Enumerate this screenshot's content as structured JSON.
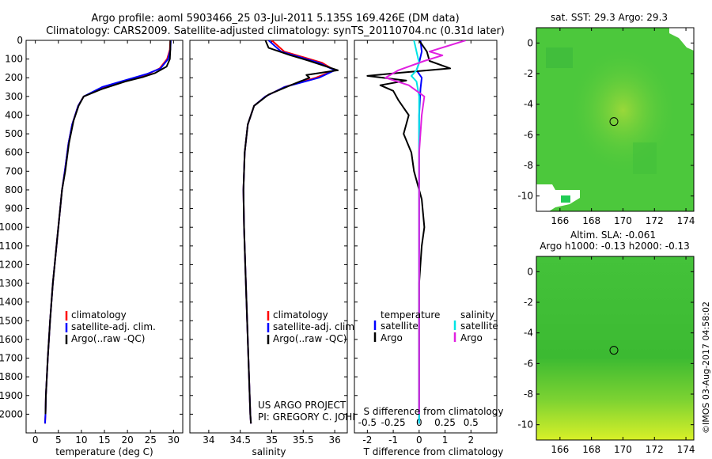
{
  "figure": {
    "title_line1": "Argo profile: aoml 5903466_25 03-Jul-2011 5.135S 169.426E (DM data)",
    "title_line2": "Climatology: CARS2009. Satellite-adjusted climatology: synTS_20110704.nc (0.31d later)",
    "credit_line1": "US ARGO PROJECT",
    "credit_line2": "PI: GREGORY C. JOHNSON",
    "side_stamp": "©IMOS 03-Aug-2017 04:58:02"
  },
  "colors": {
    "climatology": "#ff0000",
    "satellite": "#0000ff",
    "argo": "#000000",
    "salinity_satellite": "#00e5e5",
    "salinity_argo": "#e020e0",
    "map_green": "#3cc43c",
    "map_yellow": "#d8f028",
    "land": "#ffffff"
  },
  "legend": {
    "climatology": "climatology",
    "satellite_adj": "satellite-adj. clim.",
    "argo_raw": "Argo(..raw -QC)",
    "diff_temp_header": "temperature",
    "diff_sal_header": "salinity",
    "satellite": "satellite",
    "argo": "Argo"
  },
  "chart_data": [
    {
      "id": "temperature",
      "type": "line",
      "xlabel": "temperature (deg C)",
      "ylabel": "",
      "xlim": [
        -2,
        32
      ],
      "ylim": [
        2100,
        0
      ],
      "xticks": [
        0,
        5,
        10,
        15,
        20,
        25,
        30
      ],
      "xtick_labels": [
        "0",
        "5",
        "10",
        "15",
        "20",
        "25",
        "30"
      ],
      "yticks": [
        0,
        100,
        200,
        300,
        400,
        500,
        600,
        700,
        800,
        900,
        1000,
        1100,
        1200,
        1300,
        1400,
        1500,
        1600,
        1700,
        1800,
        1900,
        2000
      ],
      "ytick_labels": [
        "0",
        "100",
        "200",
        "300",
        "400",
        "500",
        "600",
        "700",
        "800",
        "900",
        "1000",
        "1100",
        "1200",
        "1300",
        "1400",
        "1500",
        "1600",
        "1700",
        "1800",
        "1900",
        "2000"
      ],
      "series": [
        {
          "name": "climatology",
          "color": "#ff0000",
          "x": [
            29.3,
            29.2,
            28.6,
            27.0,
            24.5,
            20.5,
            15.0,
            10.5,
            9.3,
            8.0,
            7.2,
            6.4,
            5.8,
            4.6,
            3.8,
            3.2,
            2.7,
            2.3,
            2.2,
            2.1
          ],
          "y": [
            0,
            50,
            100,
            150,
            180,
            210,
            250,
            300,
            350,
            450,
            550,
            700,
            800,
            1100,
            1300,
            1500,
            1700,
            1900,
            2000,
            2050
          ]
        },
        {
          "name": "satellite-adj. clim.",
          "color": "#0000ff",
          "x": [
            29.4,
            29.3,
            28.8,
            27.2,
            24.2,
            20.0,
            14.5,
            10.5,
            9.3,
            8.0,
            7.2,
            6.4,
            5.8,
            4.6,
            3.8,
            3.2,
            2.7,
            2.3,
            2.2,
            2.1
          ],
          "y": [
            0,
            50,
            100,
            150,
            180,
            210,
            250,
            300,
            350,
            450,
            550,
            700,
            800,
            1100,
            1300,
            1500,
            1700,
            1900,
            2000,
            2050
          ]
        },
        {
          "name": "Argo(..raw -QC)",
          "color": "#000000",
          "x": [
            29.3,
            29.3,
            29.2,
            28.5,
            26.0,
            23.5,
            19.5,
            14.5,
            10.5,
            9.4,
            8.3,
            7.3,
            6.5,
            5.8,
            4.6,
            3.8,
            3.2,
            2.7,
            2.3,
            2.2
          ],
          "y": [
            0,
            50,
            100,
            140,
            175,
            195,
            220,
            260,
            300,
            350,
            430,
            550,
            700,
            800,
            1100,
            1300,
            1500,
            1700,
            1900,
            2000
          ]
        }
      ]
    },
    {
      "id": "salinity",
      "type": "line",
      "xlabel": "salinity",
      "xlim": [
        33.7,
        36.2
      ],
      "ylim": [
        2100,
        0
      ],
      "xticks": [
        34,
        34.5,
        35,
        35.5,
        36
      ],
      "xtick_labels": [
        "34",
        "34.5",
        "35",
        "35.5",
        "36"
      ],
      "series": [
        {
          "name": "climatology",
          "color": "#ff0000",
          "x": [
            35.0,
            35.2,
            35.8,
            36.0,
            35.7,
            35.2,
            34.9,
            34.72,
            34.62,
            34.57,
            34.55,
            34.56,
            34.58,
            34.61,
            34.64,
            34.66,
            34.67
          ],
          "y": [
            0,
            60,
            120,
            160,
            200,
            250,
            300,
            350,
            450,
            600,
            800,
            1000,
            1200,
            1500,
            1800,
            2000,
            2050
          ]
        },
        {
          "name": "satellite-adj. clim.",
          "color": "#0000ff",
          "x": [
            34.95,
            35.15,
            35.75,
            36.0,
            35.75,
            35.2,
            34.9,
            34.72,
            34.62,
            34.57,
            34.55,
            34.56,
            34.58,
            34.61,
            34.64,
            34.66,
            34.67
          ],
          "y": [
            0,
            60,
            120,
            160,
            200,
            250,
            300,
            350,
            450,
            600,
            800,
            1000,
            1200,
            1500,
            1800,
            2000,
            2050
          ]
        },
        {
          "name": "Argo(..raw -QC)",
          "color": "#000000",
          "x": [
            34.9,
            34.95,
            35.3,
            35.6,
            36.05,
            35.55,
            35.6,
            35.3,
            34.95,
            34.72,
            34.62,
            34.57,
            34.55,
            34.56,
            34.58,
            34.61,
            34.64,
            34.66,
            34.67
          ],
          "y": [
            0,
            40,
            80,
            110,
            160,
            185,
            200,
            240,
            290,
            350,
            450,
            600,
            800,
            1000,
            1200,
            1500,
            1800,
            2000,
            2050
          ]
        }
      ]
    },
    {
      "id": "differences",
      "type": "line",
      "xlabel": "T difference from climatology",
      "xlabel_top": "S difference from climatology",
      "xlim": [
        -2.5,
        3.0
      ],
      "ylim": [
        2100,
        0
      ],
      "xticks": [
        -2,
        -1,
        0,
        1,
        2
      ],
      "xtick_labels": [
        "-2",
        "-1",
        "0",
        "1",
        "2"
      ],
      "sticks_labels": [
        "-0.5",
        "-0.25",
        "0",
        "0.25",
        "0.5"
      ],
      "sticks_pos": [
        -2,
        -1,
        0,
        1,
        2
      ],
      "series": [
        {
          "name": "temperature satellite",
          "color": "#0000ff",
          "x": [
            0.05,
            0.1,
            0.0,
            -0.1,
            0.1,
            0.05,
            0.0,
            0.0,
            0.0,
            0.0,
            0.0
          ],
          "y": [
            0,
            60,
            120,
            160,
            200,
            260,
            400,
            700,
            1000,
            1500,
            2050
          ]
        },
        {
          "name": "temperature Argo",
          "color": "#000000",
          "x": [
            0.0,
            0.3,
            0.4,
            1.2,
            -0.5,
            -2.0,
            -0.5,
            -1.5,
            -1.0,
            -0.8,
            -0.4,
            -0.6,
            -0.3,
            -0.2,
            0.1,
            0.2,
            0.1,
            0.0,
            0.0,
            0.0
          ],
          "y": [
            0,
            60,
            110,
            150,
            170,
            190,
            215,
            240,
            270,
            320,
            400,
            500,
            600,
            700,
            850,
            1000,
            1100,
            1300,
            1600,
            2000
          ]
        },
        {
          "name": "salinity satellite",
          "color": "#00e5e5",
          "x": [
            -0.2,
            -0.1,
            0.0,
            -0.1,
            -0.3,
            -0.1,
            0.0,
            0.0,
            0.0,
            0.0
          ],
          "y": [
            0,
            60,
            120,
            160,
            190,
            220,
            300,
            600,
            1200,
            2050
          ]
        },
        {
          "name": "salinity Argo",
          "color": "#e020e0",
          "x": [
            1.8,
            0.4,
            0.9,
            0.2,
            -0.8,
            -1.3,
            -0.4,
            0.2,
            0.1,
            0.0,
            0.0,
            0.0
          ],
          "y": [
            0,
            60,
            80,
            110,
            160,
            200,
            240,
            300,
            400,
            600,
            1000,
            2000
          ]
        }
      ]
    },
    {
      "id": "sst-map",
      "type": "heatmap",
      "title": "sat. SST: 29.3 Argo: 29.3",
      "xlim": [
        164.5,
        174.5
      ],
      "ylim": [
        -11,
        1
      ],
      "xticks": [
        166,
        168,
        170,
        172,
        174
      ],
      "xtick_labels": [
        "166",
        "168",
        "170",
        "172",
        "174"
      ],
      "yticks": [
        0,
        -2,
        -4,
        -6,
        -8,
        -10
      ],
      "ytick_labels": [
        "0",
        "-2",
        "-4",
        "-6",
        "-8",
        "-10"
      ],
      "profile_location": [
        169.426,
        -5.135
      ]
    },
    {
      "id": "sla-map",
      "type": "heatmap",
      "title_line1": "Altim. SLA: -0.061",
      "title_line2": "Argo h1000: -0.13 h2000: -0.13",
      "xlim": [
        164.5,
        174.5
      ],
      "ylim": [
        -11,
        1
      ],
      "xticks": [
        166,
        168,
        170,
        172,
        174
      ],
      "xtick_labels": [
        "166",
        "168",
        "170",
        "172",
        "174"
      ],
      "yticks": [
        0,
        -2,
        -4,
        -6,
        -8,
        -10
      ],
      "ytick_labels": [
        "0",
        "-2",
        "-4",
        "-6",
        "-8",
        "-10"
      ],
      "profile_location": [
        169.426,
        -5.135
      ]
    }
  ]
}
